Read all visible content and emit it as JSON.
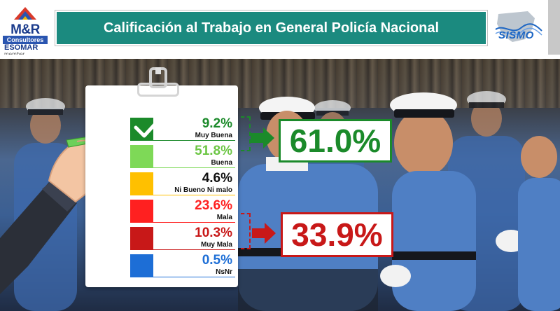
{
  "header": {
    "title": "Calificación al Trabajo en General Policía Nacional",
    "logo_left": {
      "name": "M&R",
      "sub": "Consultores",
      "org": "ESOMAR",
      "role": "member"
    },
    "logo_right": {
      "name": "SISMO"
    }
  },
  "colors": {
    "title_bar": "#1b8a7f",
    "muy_buena": "#1b8a2a",
    "buena": "#7ed957",
    "neutral": "#ffc000",
    "mala": "#ff2020",
    "muy_mala": "#c81818",
    "nsnr": "#1d6ed6"
  },
  "chart_data": {
    "type": "table",
    "title": "Calificación al Trabajo en General Policía Nacional",
    "unit": "%",
    "categories": [
      "Muy Buena",
      "Buena",
      "Ni Bueno Ni malo",
      "Mala",
      "Muy Mala",
      "NsNr"
    ],
    "values": [
      9.2,
      51.8,
      4.6,
      23.6,
      10.3,
      0.5
    ],
    "display_values": [
      "9.2%",
      "51.8%",
      "4.6%",
      "23.6%",
      "10.3%",
      "0.5%"
    ],
    "swatch_colors": [
      "#1b8a2a",
      "#7ed957",
      "#ffc000",
      "#ff2020",
      "#c81818",
      "#1d6ed6"
    ],
    "text_colors": [
      "#1b8a2a",
      "#6cc644",
      "#111111",
      "#ff2020",
      "#c81818",
      "#1d6ed6"
    ],
    "checked_category": "Muy Buena",
    "summaries": [
      {
        "label": "61.0%",
        "value": 61.0,
        "groups": [
          "Muy Buena",
          "Buena"
        ],
        "color": "#1b8a2a"
      },
      {
        "label": "33.9%",
        "value": 33.9,
        "groups": [
          "Mala",
          "Muy Mala"
        ],
        "color": "#c81818"
      }
    ]
  }
}
